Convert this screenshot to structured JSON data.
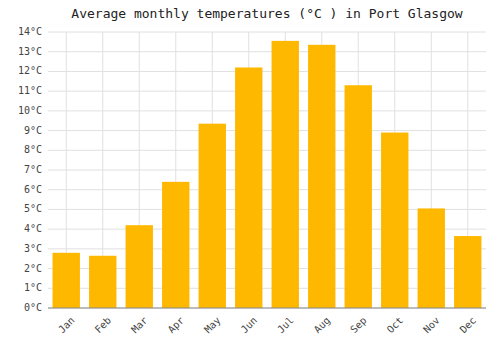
{
  "chart_data": {
    "type": "bar",
    "title": "Average monthly temperatures (°C ) in Port Glasgow",
    "categories": [
      "Jan",
      "Feb",
      "Mar",
      "Apr",
      "May",
      "Jun",
      "Jul",
      "Aug",
      "Sep",
      "Oct",
      "Nov",
      "Dec"
    ],
    "values": [
      2.8,
      2.65,
      4.2,
      6.4,
      9.35,
      12.2,
      13.55,
      13.35,
      11.3,
      8.9,
      5.05,
      3.65
    ],
    "color": "#FFB800",
    "ylim": [
      0,
      14
    ],
    "yticks": [
      {
        "value": 0,
        "label": "0°C"
      },
      {
        "value": 1,
        "label": "1°C"
      },
      {
        "value": 2,
        "label": "2°C"
      },
      {
        "value": 3,
        "label": "3°C"
      },
      {
        "value": 4,
        "label": "4°C"
      },
      {
        "value": 5,
        "label": "5°C"
      },
      {
        "value": 6,
        "label": "6°C"
      },
      {
        "value": 7,
        "label": "7°C"
      },
      {
        "value": 8,
        "label": "8°C"
      },
      {
        "value": 9,
        "label": "9°C"
      },
      {
        "value": 10,
        "label": "10°C"
      },
      {
        "value": 11,
        "label": "11°C"
      },
      {
        "value": 12,
        "label": "12°C"
      },
      {
        "value": 13,
        "label": "13°C"
      },
      {
        "value": 14,
        "label": "14°C"
      }
    ],
    "grid": true
  }
}
